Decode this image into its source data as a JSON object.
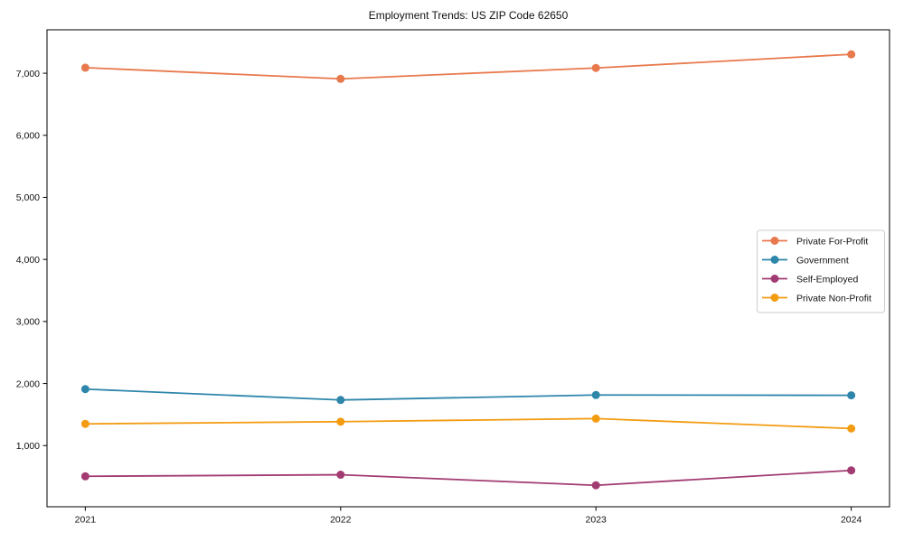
{
  "chart_data": {
    "type": "line",
    "title": "Employment Trends: US ZIP Code 62650",
    "xlabel": "",
    "ylabel": "",
    "x": [
      2021,
      2022,
      2023,
      2024
    ],
    "x_tick_labels": [
      "2021",
      "2022",
      "2023",
      "2024"
    ],
    "y_ticks": [
      1000,
      2000,
      3000,
      4000,
      5000,
      6000,
      7000
    ],
    "y_tick_labels": [
      "1,000",
      "2,000",
      "3,000",
      "4,000",
      "5,000",
      "6,000",
      "7,000"
    ],
    "xlim": [
      2020.85,
      2024.15
    ],
    "ylim": [
      14,
      7700
    ],
    "grid": false,
    "legend_position": "center right",
    "legend_border_color": "#cccccc",
    "axis_color": "#000000",
    "series": [
      {
        "name": "Private For-Profit",
        "color": "#E8794D",
        "values": [
          7090,
          6910,
          7085,
          7305
        ]
      },
      {
        "name": "Government",
        "color": "#2E86AB",
        "values": [
          1910,
          1735,
          1815,
          1810
        ]
      },
      {
        "name": "Self-Employed",
        "color": "#A23B72",
        "values": [
          505,
          530,
          360,
          600
        ]
      },
      {
        "name": "Private Non-Profit",
        "color": "#F39C12",
        "values": [
          1350,
          1385,
          1435,
          1275
        ]
      }
    ]
  }
}
